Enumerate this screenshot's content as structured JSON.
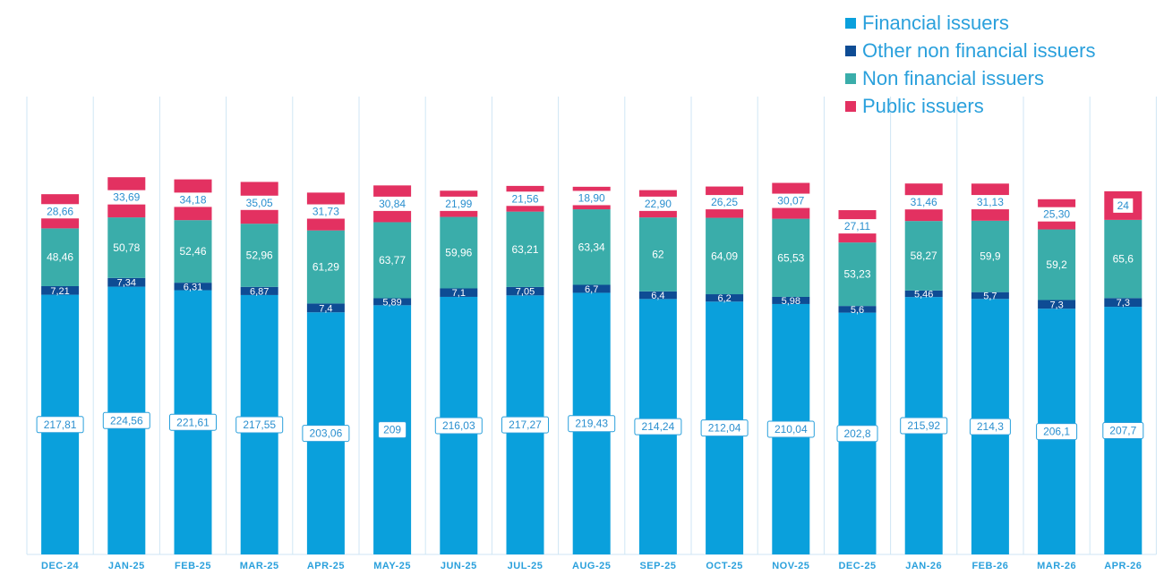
{
  "chart_data": {
    "type": "bar",
    "stacked": true,
    "categories": [
      "DEC-24",
      "JAN-25",
      "FEB-25",
      "MAR-25",
      "APR-25",
      "MAY-25",
      "JUN-25",
      "JUL-25",
      "AUG-25",
      "SEP-25",
      "OCT-25",
      "NOV-25",
      "DEC-25",
      "JAN-26",
      "FEB-26",
      "MAR-26",
      "APR-26"
    ],
    "series": [
      {
        "name": "Financial issuers",
        "color": "#0aa0dc",
        "values": [
          217.81,
          224.56,
          221.61,
          217.55,
          203.06,
          209,
          216.03,
          217.27,
          219.43,
          214.24,
          212.04,
          210.04,
          202.8,
          215.92,
          214.3,
          206.1,
          207.7
        ],
        "labels": [
          "217,81",
          "224,56",
          "221,61",
          "217,55",
          "203,06",
          "209",
          "216,03",
          "217,27",
          "219,43",
          "214,24",
          "212,04",
          "210,04",
          "202,8",
          "215,92",
          "214,3",
          "206,1",
          "207,7"
        ]
      },
      {
        "name": "Other non financial issuers",
        "color": "#0e4c94",
        "values": [
          7.21,
          7.34,
          6.31,
          6.87,
          7.4,
          5.89,
          7.1,
          7.05,
          6.7,
          6.4,
          6.2,
          5.98,
          5.6,
          5.46,
          5.7,
          7.3,
          7.3
        ],
        "labels": [
          "7,21",
          "7,34",
          "6,31",
          "6,87",
          "7,4",
          "5,89",
          "7,1",
          "7,05",
          "6,7",
          "6,4",
          "6,2",
          "5,98",
          "5,6",
          "5,46",
          "5,7",
          "7,3",
          "7,3"
        ]
      },
      {
        "name": "Non financial issuers",
        "color": "#3aadaa",
        "values": [
          48.46,
          50.78,
          52.46,
          52.96,
          61.29,
          63.77,
          59.96,
          63.21,
          63.34,
          62,
          64.09,
          65.53,
          53.23,
          58.27,
          59.9,
          59.2,
          65.6
        ],
        "labels": [
          "48,46",
          "50,78",
          "52,46",
          "52,96",
          "61,29",
          "63,77",
          "59,96",
          "63,21",
          "63,34",
          "62",
          "64,09",
          "65,53",
          "53,23",
          "58,27",
          "59,9",
          "59,2",
          "65,6"
        ]
      },
      {
        "name": "Public issuers",
        "color": "#e33161",
        "values": [
          28.66,
          33.69,
          34.18,
          35.05,
          31.73,
          30.84,
          21.99,
          21.56,
          18.9,
          22.9,
          26.25,
          30.07,
          27.11,
          31.46,
          31.13,
          25.3,
          24
        ],
        "labels": [
          "28,66",
          "33,69",
          "34,18",
          "35,05",
          "31,73",
          "30,84",
          "21,99",
          "21,56",
          "18,90",
          "22,90",
          "26,25",
          "30,07",
          "27,11",
          "31,46",
          "31,13",
          "25,30",
          "24"
        ]
      }
    ],
    "ylim": [
      0,
      350
    ],
    "grid": "vertical",
    "legend": "top-right",
    "title": "",
    "xlabel": "",
    "ylabel": ""
  },
  "colors": {
    "background": "#ffffff",
    "gridline": "#cfe6f4",
    "tick_text": "#2aa0dc",
    "label_box_border": "#2aa0dc"
  }
}
